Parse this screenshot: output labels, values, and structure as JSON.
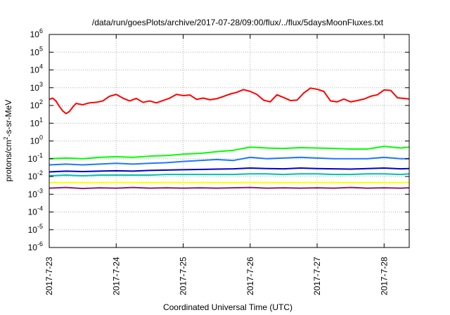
{
  "chart_data": {
    "type": "line",
    "title": "/data/run/goesPlots/archive/2017-07-28/09:00/flux/../flux/5daysMoonFluxes.txt",
    "xlabel": "Coordinated Universal Time (UTC)",
    "ylabel_parts": {
      "before": "protons/cm",
      "sup": "2",
      "after": "-s-sr-MeV"
    },
    "yscale": "log",
    "ylim": [
      1e-06,
      1000000.0
    ],
    "xlim": [
      "2017-07-23",
      "2017-07-28 09:00"
    ],
    "xlim_days": [
      0,
      5.375
    ],
    "grid": true,
    "x_ticks": [
      {
        "label": "2017-7-23",
        "day": 0
      },
      {
        "label": "2017-7-24",
        "day": 1
      },
      {
        "label": "2017-7-25",
        "day": 2
      },
      {
        "label": "2017-7-26",
        "day": 3
      },
      {
        "label": "2017-7-27",
        "day": 4
      },
      {
        "label": "2017-7-28",
        "day": 5
      }
    ],
    "y_ticks": [
      {
        "base": "10",
        "exp": "-6",
        "value": 1e-06
      },
      {
        "base": "10",
        "exp": "-5",
        "value": 1e-05
      },
      {
        "base": "10",
        "exp": "-4",
        "value": 0.0001
      },
      {
        "base": "10",
        "exp": "-3",
        "value": 0.001
      },
      {
        "base": "10",
        "exp": "-2",
        "value": 0.01
      },
      {
        "base": "10",
        "exp": "-1",
        "value": 0.1
      },
      {
        "base": "10",
        "exp": "0",
        "value": 1
      },
      {
        "base": "10",
        "exp": "1",
        "value": 10
      },
      {
        "base": "10",
        "exp": "2",
        "value": 100
      },
      {
        "base": "10",
        "exp": "3",
        "value": 1000
      },
      {
        "base": "10",
        "exp": "4",
        "value": 10000
      },
      {
        "base": "10",
        "exp": "5",
        "value": 100000
      },
      {
        "base": "10",
        "exp": "6",
        "value": 1000000
      }
    ],
    "series": [
      {
        "color": "#ff0000",
        "x": [
          0,
          0.05,
          0.1,
          0.15,
          0.2,
          0.25,
          0.3,
          0.35,
          0.4,
          0.5,
          0.6,
          0.7,
          0.8,
          0.9,
          1.0,
          1.1,
          1.2,
          1.3,
          1.4,
          1.5,
          1.6,
          1.7,
          1.8,
          1.9,
          2.0,
          2.1,
          2.2,
          2.3,
          2.4,
          2.5,
          2.6,
          2.7,
          2.8,
          2.9,
          3.0,
          3.1,
          3.2,
          3.3,
          3.4,
          3.5,
          3.6,
          3.7,
          3.8,
          3.9,
          4.0,
          4.1,
          4.2,
          4.3,
          4.4,
          4.5,
          4.6,
          4.7,
          4.8,
          4.9,
          5.0,
          5.1,
          5.2,
          5.3,
          5.375
        ],
        "y": [
          220,
          260,
          180,
          90,
          50,
          35,
          45,
          80,
          130,
          110,
          140,
          150,
          180,
          330,
          420,
          260,
          180,
          250,
          150,
          180,
          140,
          190,
          260,
          420,
          360,
          390,
          220,
          260,
          210,
          240,
          320,
          440,
          550,
          780,
          620,
          420,
          200,
          160,
          400,
          280,
          190,
          200,
          500,
          950,
          820,
          620,
          180,
          160,
          230,
          160,
          190,
          230,
          330,
          400,
          750,
          700,
          270,
          250,
          230
        ]
      },
      {
        "color": "#00ff00",
        "x": [
          0,
          0.25,
          0.5,
          0.75,
          1.0,
          1.25,
          1.5,
          1.75,
          2.0,
          2.25,
          2.5,
          2.75,
          3.0,
          3.25,
          3.5,
          3.75,
          4.0,
          4.25,
          4.5,
          4.75,
          5.0,
          5.25,
          5.375
        ],
        "y": [
          0.1,
          0.11,
          0.1,
          0.12,
          0.13,
          0.12,
          0.14,
          0.15,
          0.18,
          0.2,
          0.25,
          0.3,
          0.45,
          0.4,
          0.38,
          0.42,
          0.4,
          0.38,
          0.35,
          0.35,
          0.5,
          0.4,
          0.45
        ]
      },
      {
        "color": "#1e78ff",
        "x": [
          0,
          0.25,
          0.5,
          0.75,
          1.0,
          1.25,
          1.5,
          1.75,
          2.0,
          2.25,
          2.5,
          2.75,
          3.0,
          3.25,
          3.5,
          3.75,
          4.0,
          4.25,
          4.5,
          4.75,
          5.0,
          5.25,
          5.375
        ],
        "y": [
          0.045,
          0.05,
          0.045,
          0.05,
          0.055,
          0.05,
          0.055,
          0.06,
          0.07,
          0.08,
          0.09,
          0.08,
          0.12,
          0.1,
          0.11,
          0.12,
          0.11,
          0.1,
          0.1,
          0.1,
          0.12,
          0.1,
          0.1
        ]
      },
      {
        "color": "#0000cc",
        "x": [
          0,
          0.25,
          0.5,
          0.75,
          1.0,
          1.25,
          1.5,
          1.75,
          2.0,
          2.25,
          2.5,
          2.75,
          3.0,
          3.25,
          3.5,
          3.75,
          4.0,
          4.25,
          4.5,
          4.75,
          5.0,
          5.25,
          5.375
        ],
        "y": [
          0.018,
          0.02,
          0.019,
          0.02,
          0.021,
          0.02,
          0.022,
          0.023,
          0.024,
          0.025,
          0.026,
          0.027,
          0.03,
          0.028,
          0.027,
          0.03,
          0.028,
          0.027,
          0.026,
          0.028,
          0.03,
          0.027,
          0.028
        ]
      },
      {
        "color": "#00c0b0",
        "x": [
          0,
          0.25,
          0.5,
          0.75,
          1.0,
          1.25,
          1.5,
          1.75,
          2.0,
          2.25,
          2.5,
          2.75,
          3.0,
          3.25,
          3.5,
          3.75,
          4.0,
          4.25,
          4.5,
          4.75,
          5.0,
          5.25,
          5.375
        ],
        "y": [
          0.011,
          0.012,
          0.011,
          0.012,
          0.012,
          0.012,
          0.012,
          0.013,
          0.013,
          0.013,
          0.013,
          0.013,
          0.014,
          0.014,
          0.013,
          0.014,
          0.014,
          0.013,
          0.013,
          0.014,
          0.014,
          0.013,
          0.014
        ]
      },
      {
        "color": "#ffff00",
        "x": [
          0,
          0.5,
          1.0,
          1.5,
          2.0,
          2.5,
          3.0,
          3.5,
          4.0,
          4.5,
          5.0,
          5.375
        ],
        "y": [
          0.0045,
          0.0045,
          0.0046,
          0.0045,
          0.0046,
          0.0045,
          0.0046,
          0.0045,
          0.0046,
          0.0045,
          0.0045,
          0.0046
        ]
      },
      {
        "color": "#8b2070",
        "x": [
          0,
          0.25,
          0.5,
          0.75,
          1.0,
          1.25,
          1.5,
          1.75,
          2.0,
          2.25,
          2.5,
          2.75,
          3.0,
          3.25,
          3.5,
          3.75,
          4.0,
          4.25,
          4.5,
          4.75,
          5.0,
          5.25,
          5.375
        ],
        "y": [
          0.0022,
          0.0024,
          0.0021,
          0.0023,
          0.0022,
          0.0024,
          0.0022,
          0.0023,
          0.0022,
          0.0023,
          0.0022,
          0.0023,
          0.0024,
          0.0022,
          0.0023,
          0.0022,
          0.0023,
          0.0022,
          0.0024,
          0.0022,
          0.0023,
          0.0022,
          0.0023
        ]
      }
    ]
  }
}
